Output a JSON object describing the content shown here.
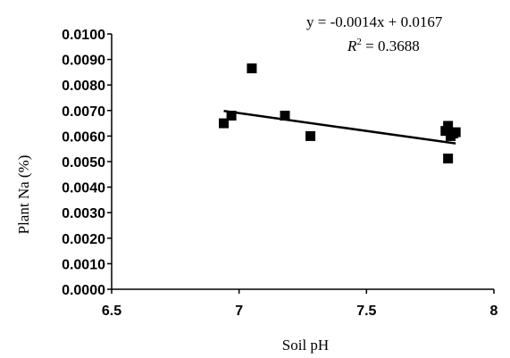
{
  "chart_data": {
    "type": "scatter",
    "title": "",
    "xlabel": "Soil pH",
    "ylabel": "Plant Na (%)",
    "xlim": [
      6.5,
      8
    ],
    "ylim": [
      0,
      0.01
    ],
    "x_ticks": [
      "6.5",
      "7",
      "7.5",
      "8"
    ],
    "y_ticks": [
      "0.0000",
      "0.0010",
      "0.0020",
      "0.0030",
      "0.0040",
      "0.0050",
      "0.0060",
      "0.0070",
      "0.0080",
      "0.0090",
      "0.0100"
    ],
    "points": [
      {
        "x": 6.94,
        "y": 0.0065
      },
      {
        "x": 6.97,
        "y": 0.0068
      },
      {
        "x": 7.05,
        "y": 0.00865
      },
      {
        "x": 7.18,
        "y": 0.0068
      },
      {
        "x": 7.28,
        "y": 0.006
      },
      {
        "x": 7.81,
        "y": 0.0062
      },
      {
        "x": 7.82,
        "y": 0.0064
      },
      {
        "x": 7.82,
        "y": 0.00512
      },
      {
        "x": 7.83,
        "y": 0.006
      },
      {
        "x": 7.84,
        "y": 0.0061
      },
      {
        "x": 7.85,
        "y": 0.00615
      }
    ],
    "trendline": {
      "type": "linear",
      "slope": -0.0014,
      "intercept": 0.0167,
      "x_range": [
        6.94,
        7.85
      ],
      "equation_text": "y = -0.0014x + 0.0167",
      "r2_label": "R",
      "r2_sup": "2",
      "r2_value_text": " = 0.3688"
    },
    "marker": "square",
    "grid": false,
    "legend": "none"
  }
}
